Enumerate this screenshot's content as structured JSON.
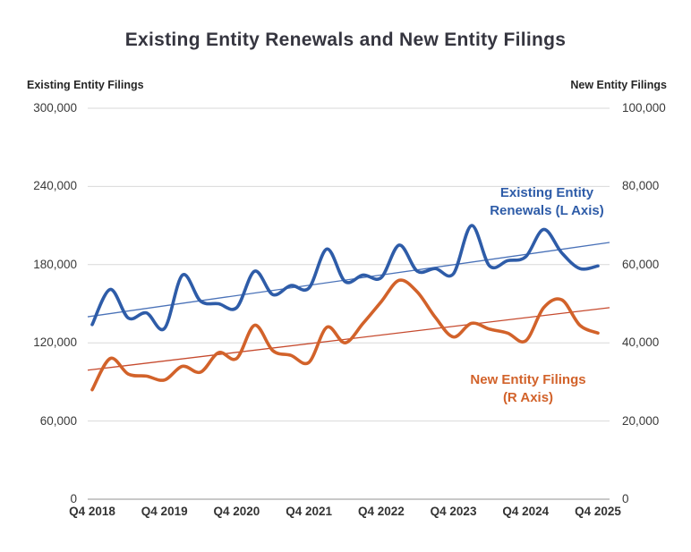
{
  "title": "Existing Entity Renewals and New Entity Filings",
  "left_axis": {
    "header": "Existing Entity Filings",
    "tick_labels": [
      "300,000",
      "240,000",
      "180,000",
      "120,000",
      "60,000",
      "0"
    ]
  },
  "right_axis": {
    "header": "New Entity Filings",
    "tick_labels": [
      "100,000",
      "80,000",
      "60,000",
      "40,000",
      "20,000",
      "0"
    ]
  },
  "x_axis": {
    "tick_labels": [
      "Q4 2018",
      "Q4 2019",
      "Q4 2020",
      "Q4 2021",
      "Q4 2022",
      "Q4 2023",
      "Q4 2024",
      "Q4 2025"
    ]
  },
  "annotations": {
    "blue_line1": "Existing Entity",
    "blue_line2": "Renewals (L Axis)",
    "orange_line1": "New Entity Filings",
    "orange_line2": "(R Axis)"
  },
  "colors": {
    "blue": "#2e5ca8",
    "orange": "#d2622a",
    "blue_trend": "#4a72b8",
    "orange_trend": "#c64a2e",
    "gridline": "#d9d9d9",
    "axis_line": "#a6a6a6",
    "text": "#3a3a3a",
    "title": "#35353f"
  },
  "chart_data": {
    "type": "line",
    "smoothed": true,
    "grid": "horizontal",
    "title": "Existing Entity Renewals and New Entity Filings",
    "left_ylabel": "Existing Entity Filings",
    "right_ylabel": "New Entity Filings",
    "left_ylim": [
      0,
      300000
    ],
    "right_ylim": [
      0,
      100000
    ],
    "x": [
      "Q4 2018",
      "Q1 2019",
      "Q2 2019",
      "Q3 2019",
      "Q4 2019",
      "Q1 2020",
      "Q2 2020",
      "Q3 2020",
      "Q4 2020",
      "Q1 2021",
      "Q2 2021",
      "Q3 2021",
      "Q4 2021",
      "Q1 2022",
      "Q2 2022",
      "Q3 2022",
      "Q4 2022",
      "Q1 2023",
      "Q2 2023",
      "Q3 2023",
      "Q4 2023",
      "Q1 2024",
      "Q2 2024",
      "Q3 2024",
      "Q4 2024",
      "Q1 2025",
      "Q2 2025",
      "Q3 2025",
      "Q4 2025"
    ],
    "series": [
      {
        "name": "Existing Entity Renewals (L Axis)",
        "axis": "left",
        "color_key": "blue",
        "values": [
          134000,
          161000,
          139000,
          143000,
          131000,
          172000,
          152000,
          150000,
          147000,
          175000,
          157000,
          164000,
          162000,
          192000,
          167000,
          172000,
          170000,
          195000,
          175000,
          177000,
          173000,
          210000,
          179000,
          183000,
          186000,
          207000,
          189000,
          177000,
          179000
        ]
      },
      {
        "name": "New Entity Filings (R Axis)",
        "axis": "right",
        "color_key": "orange",
        "values": [
          28000,
          36000,
          32000,
          31500,
          30500,
          34000,
          32500,
          37500,
          36000,
          44500,
          38000,
          36800,
          35000,
          44000,
          40000,
          45000,
          50500,
          56000,
          53000,
          46500,
          41500,
          45000,
          43500,
          42500,
          40500,
          49000,
          51000,
          44500,
          42500
        ]
      }
    ],
    "trendlines": [
      {
        "series": "Existing Entity Renewals (L Axis)",
        "axis": "left",
        "start": 140000,
        "end": 197000,
        "color_key": "blue_trend"
      },
      {
        "series": "New Entity Filings (R Axis)",
        "axis": "right",
        "start": 33000,
        "end": 49000,
        "color_key": "orange_trend"
      }
    ]
  }
}
